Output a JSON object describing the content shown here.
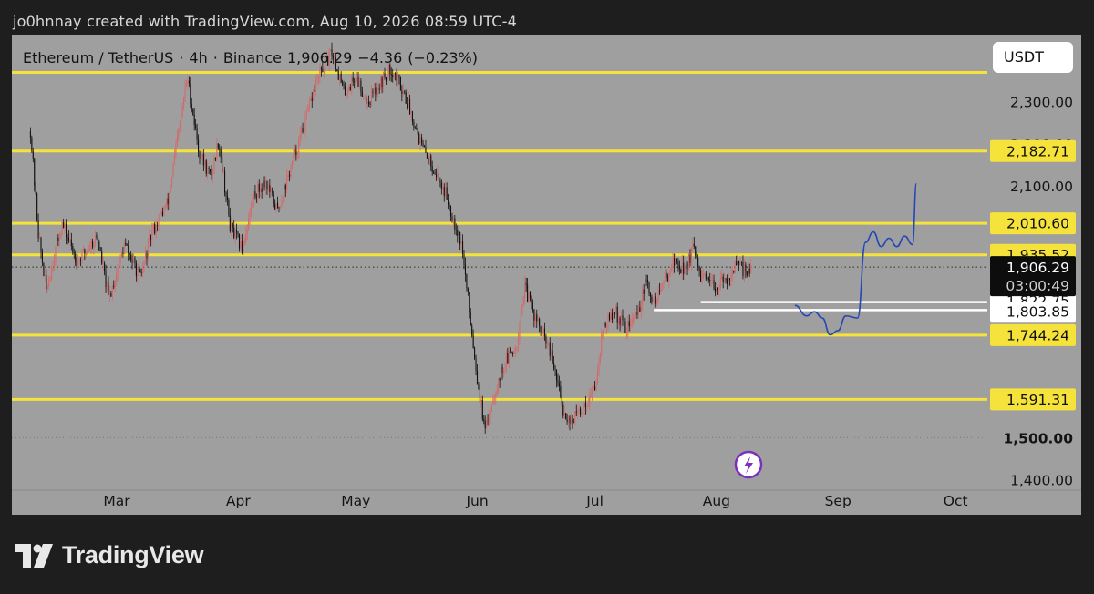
{
  "header": {
    "credit": "jo0hnnay created with TradingView.com, Aug 10, 2026 08:59 UTC-4"
  },
  "symbol_bar": {
    "pair": "Ethereum / TetherUS",
    "interval": "4h",
    "exchange": "Binance",
    "last_price": "1,906.29",
    "change": "−4.36",
    "change_pct": "(−0.23%)"
  },
  "currency_label": "USDT",
  "footer": {
    "brand": "TradingView"
  },
  "colors": {
    "background": "#1e1e1e",
    "panel": "#9f9f9f",
    "level_line": "#f5e23a",
    "up_candle": "#d46a6a",
    "down_candle": "#111111",
    "projection": "#2447b5",
    "support_line": "#ffffff",
    "alert_icon": "#7b2fbf"
  },
  "chart_data": {
    "type": "candlestick",
    "title": "Ethereum / TetherUS · 4h · Binance",
    "y_unit": "USDT",
    "ylim": [
      1375,
      2460
    ],
    "x_labels": [
      "Mar",
      "Apr",
      "May",
      "Jun",
      "Jul",
      "Aug",
      "Sep",
      "Oct"
    ],
    "y_ticks": [
      {
        "value": 2300,
        "label": "2,300.00"
      },
      {
        "value": 2100,
        "label": "2,100.00"
      },
      {
        "value": 1500,
        "label": "1,500.00",
        "bold": true
      },
      {
        "value": 1400,
        "label": "1,400.00"
      }
    ],
    "horizontal_levels": [
      {
        "value": 2370.0,
        "label": ""
      },
      {
        "value": 2182.71,
        "label": "2,182.71"
      },
      {
        "value": 2010.6,
        "label": "2,010.60"
      },
      {
        "value": 1935.52,
        "label": "1,935.52"
      },
      {
        "value": 1744.24,
        "label": "1,744.24"
      },
      {
        "value": 1591.31,
        "label": "1,591.31"
      }
    ],
    "support_lines": [
      {
        "value": 1822.75,
        "label": "1,822.75",
        "from": "Jul 28",
        "to": "axis"
      },
      {
        "value": 1803.85,
        "label": "1,803.85",
        "from": "Jul 16",
        "to": "axis"
      }
    ],
    "current_price": {
      "value": 1906.29,
      "label": "1,906.29",
      "countdown": "03:00:49"
    },
    "price_path": [
      {
        "date": "Feb 7",
        "price": 2230
      },
      {
        "date": "Feb 9",
        "price": 1990
      },
      {
        "date": "Feb 11",
        "price": 1850
      },
      {
        "date": "Feb 15",
        "price": 2010
      },
      {
        "date": "Feb 19",
        "price": 1920
      },
      {
        "date": "Feb 24",
        "price": 1980
      },
      {
        "date": "Feb 27",
        "price": 1830
      },
      {
        "date": "Mar 3",
        "price": 1960
      },
      {
        "date": "Mar 7",
        "price": 1880
      },
      {
        "date": "Mar 10",
        "price": 1990
      },
      {
        "date": "Mar 14",
        "price": 2060
      },
      {
        "date": "Mar 17",
        "price": 2240
      },
      {
        "date": "Mar 19",
        "price": 2360
      },
      {
        "date": "Mar 22",
        "price": 2180
      },
      {
        "date": "Mar 25",
        "price": 2120
      },
      {
        "date": "Mar 27",
        "price": 2210
      },
      {
        "date": "Mar 30",
        "price": 2000
      },
      {
        "date": "Apr 2",
        "price": 1950
      },
      {
        "date": "Apr 5",
        "price": 2080
      },
      {
        "date": "Apr 8",
        "price": 2110
      },
      {
        "date": "Apr 11",
        "price": 2040
      },
      {
        "date": "Apr 15",
        "price": 2160
      },
      {
        "date": "Apr 18",
        "price": 2250
      },
      {
        "date": "Apr 21",
        "price": 2350
      },
      {
        "date": "Apr 25",
        "price": 2420
      },
      {
        "date": "Apr 28",
        "price": 2320
      },
      {
        "date": "May 1",
        "price": 2360
      },
      {
        "date": "May 4",
        "price": 2300
      },
      {
        "date": "May 7",
        "price": 2340
      },
      {
        "date": "May 10",
        "price": 2380
      },
      {
        "date": "May 13",
        "price": 2330
      },
      {
        "date": "May 16",
        "price": 2250
      },
      {
        "date": "May 18",
        "price": 2190
      },
      {
        "date": "May 21",
        "price": 2140
      },
      {
        "date": "May 24",
        "price": 2080
      },
      {
        "date": "May 26",
        "price": 2020
      },
      {
        "date": "May 28",
        "price": 1960
      },
      {
        "date": "May 30",
        "price": 1800
      },
      {
        "date": "Jun 1",
        "price": 1640
      },
      {
        "date": "Jun 3",
        "price": 1510
      },
      {
        "date": "Jun 5",
        "price": 1600
      },
      {
        "date": "Jun 8",
        "price": 1680
      },
      {
        "date": "Jun 11",
        "price": 1720
      },
      {
        "date": "Jun 13",
        "price": 1860
      },
      {
        "date": "Jun 16",
        "price": 1780
      },
      {
        "date": "Jun 19",
        "price": 1720
      },
      {
        "date": "Jun 21",
        "price": 1650
      },
      {
        "date": "Jun 23",
        "price": 1560
      },
      {
        "date": "Jun 25",
        "price": 1540
      },
      {
        "date": "Jun 28",
        "price": 1570
      },
      {
        "date": "Jul 1",
        "price": 1620
      },
      {
        "date": "Jul 3",
        "price": 1760
      },
      {
        "date": "Jul 6",
        "price": 1800
      },
      {
        "date": "Jul 9",
        "price": 1760
      },
      {
        "date": "Jul 12",
        "price": 1800
      },
      {
        "date": "Jul 14",
        "price": 1870
      },
      {
        "date": "Jul 16",
        "price": 1820
      },
      {
        "date": "Jul 19",
        "price": 1880
      },
      {
        "date": "Jul 21",
        "price": 1920
      },
      {
        "date": "Jul 24",
        "price": 1900
      },
      {
        "date": "Jul 26",
        "price": 1950
      },
      {
        "date": "Jul 28",
        "price": 1880
      },
      {
        "date": "Jul 31",
        "price": 1860
      },
      {
        "date": "Aug 3",
        "price": 1870
      },
      {
        "date": "Aug 6",
        "price": 1910
      },
      {
        "date": "Aug 8",
        "price": 1900
      },
      {
        "date": "Aug 10",
        "price": 1906
      }
    ],
    "projection_path": [
      {
        "date": "Aug 21",
        "price": 1815
      },
      {
        "date": "Aug 24",
        "price": 1790
      },
      {
        "date": "Aug 26",
        "price": 1800
      },
      {
        "date": "Aug 28",
        "price": 1785
      },
      {
        "date": "Aug 30",
        "price": 1745
      },
      {
        "date": "Sep 1",
        "price": 1755
      },
      {
        "date": "Sep 3",
        "price": 1790
      },
      {
        "date": "Sep 6",
        "price": 1785
      },
      {
        "date": "Sep 8",
        "price": 1965
      },
      {
        "date": "Sep 10",
        "price": 1990
      },
      {
        "date": "Sep 12",
        "price": 1955
      },
      {
        "date": "Sep 14",
        "price": 1975
      },
      {
        "date": "Sep 16",
        "price": 1955
      },
      {
        "date": "Sep 18",
        "price": 1980
      },
      {
        "date": "Sep 20",
        "price": 1960
      },
      {
        "date": "Sep 21",
        "price": 2105
      }
    ]
  }
}
